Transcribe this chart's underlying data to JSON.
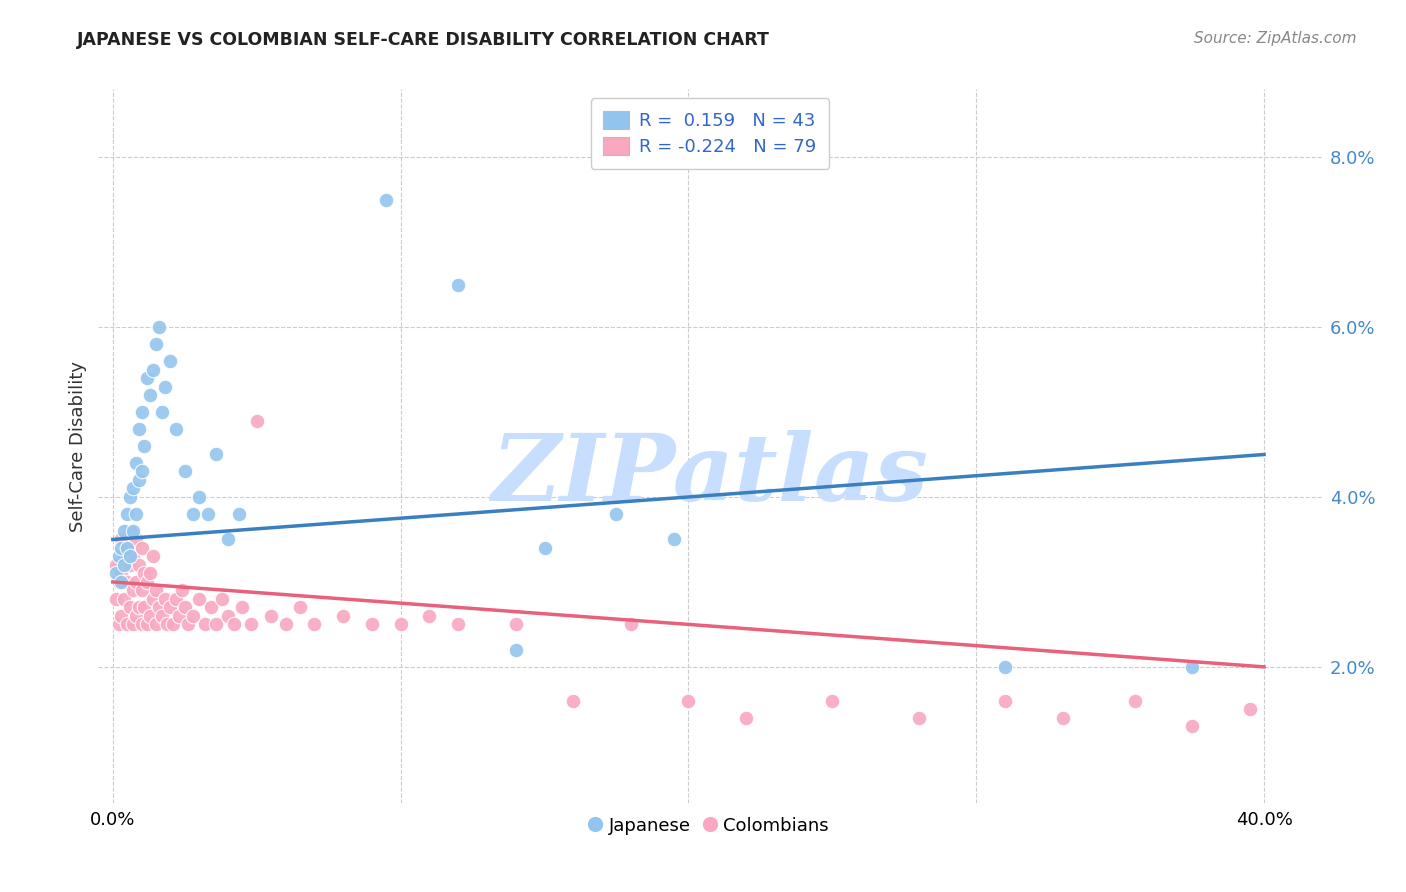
{
  "title": "JAPANESE VS COLOMBIAN SELF-CARE DISABILITY CORRELATION CHART",
  "source": "Source: ZipAtlas.com",
  "ylabel": "Self-Care Disability",
  "y_ticks": [
    0.02,
    0.04,
    0.06,
    0.08
  ],
  "y_tick_labels": [
    "2.0%",
    "4.0%",
    "6.0%",
    "8.0%"
  ],
  "x_ticks": [
    0.0,
    0.4
  ],
  "x_tick_labels": [
    "0.0%",
    "40.0%"
  ],
  "xlim": [
    -0.005,
    0.42
  ],
  "ylim": [
    0.004,
    0.088
  ],
  "r_japanese": 0.159,
  "n_japanese": 43,
  "r_colombian": -0.224,
  "n_colombian": 79,
  "japanese_color": "#92C5ED",
  "colombian_color": "#F9A8C0",
  "japanese_line_color": "#3A7FBF",
  "colombian_line_color": "#E8607A",
  "watermark": "ZIPatlas",
  "watermark_color": "#C8DEFF",
  "japanese_points_x": [
    0.001,
    0.002,
    0.003,
    0.003,
    0.004,
    0.004,
    0.005,
    0.005,
    0.006,
    0.006,
    0.007,
    0.007,
    0.008,
    0.008,
    0.009,
    0.009,
    0.01,
    0.01,
    0.011,
    0.012,
    0.013,
    0.014,
    0.015,
    0.016,
    0.017,
    0.018,
    0.02,
    0.022,
    0.025,
    0.028,
    0.03,
    0.033,
    0.036,
    0.04,
    0.044,
    0.095,
    0.12,
    0.15,
    0.175,
    0.195,
    0.31,
    0.375,
    0.14
  ],
  "japanese_points_y": [
    0.031,
    0.033,
    0.03,
    0.034,
    0.032,
    0.036,
    0.034,
    0.038,
    0.033,
    0.04,
    0.036,
    0.041,
    0.038,
    0.044,
    0.042,
    0.048,
    0.043,
    0.05,
    0.046,
    0.054,
    0.052,
    0.055,
    0.058,
    0.06,
    0.05,
    0.053,
    0.056,
    0.048,
    0.043,
    0.038,
    0.04,
    0.038,
    0.045,
    0.035,
    0.038,
    0.075,
    0.065,
    0.034,
    0.038,
    0.035,
    0.02,
    0.02,
    0.022
  ],
  "colombian_points_x": [
    0.001,
    0.001,
    0.002,
    0.002,
    0.003,
    0.003,
    0.003,
    0.004,
    0.004,
    0.005,
    0.005,
    0.005,
    0.006,
    0.006,
    0.006,
    0.007,
    0.007,
    0.007,
    0.008,
    0.008,
    0.008,
    0.009,
    0.009,
    0.01,
    0.01,
    0.01,
    0.011,
    0.011,
    0.012,
    0.012,
    0.013,
    0.013,
    0.014,
    0.014,
    0.015,
    0.015,
    0.016,
    0.017,
    0.018,
    0.019,
    0.02,
    0.021,
    0.022,
    0.023,
    0.024,
    0.025,
    0.026,
    0.028,
    0.03,
    0.032,
    0.034,
    0.036,
    0.038,
    0.04,
    0.042,
    0.045,
    0.048,
    0.05,
    0.055,
    0.06,
    0.065,
    0.07,
    0.08,
    0.09,
    0.1,
    0.11,
    0.12,
    0.14,
    0.16,
    0.18,
    0.2,
    0.22,
    0.25,
    0.28,
    0.31,
    0.33,
    0.355,
    0.375,
    0.395
  ],
  "colombian_points_y": [
    0.028,
    0.032,
    0.025,
    0.03,
    0.026,
    0.031,
    0.035,
    0.028,
    0.033,
    0.025,
    0.03,
    0.034,
    0.027,
    0.032,
    0.036,
    0.025,
    0.029,
    0.033,
    0.026,
    0.03,
    0.035,
    0.027,
    0.032,
    0.025,
    0.029,
    0.034,
    0.027,
    0.031,
    0.025,
    0.03,
    0.026,
    0.031,
    0.028,
    0.033,
    0.025,
    0.029,
    0.027,
    0.026,
    0.028,
    0.025,
    0.027,
    0.025,
    0.028,
    0.026,
    0.029,
    0.027,
    0.025,
    0.026,
    0.028,
    0.025,
    0.027,
    0.025,
    0.028,
    0.026,
    0.025,
    0.027,
    0.025,
    0.049,
    0.026,
    0.025,
    0.027,
    0.025,
    0.026,
    0.025,
    0.025,
    0.026,
    0.025,
    0.025,
    0.016,
    0.025,
    0.016,
    0.014,
    0.016,
    0.014,
    0.016,
    0.014,
    0.016,
    0.013,
    0.015
  ]
}
